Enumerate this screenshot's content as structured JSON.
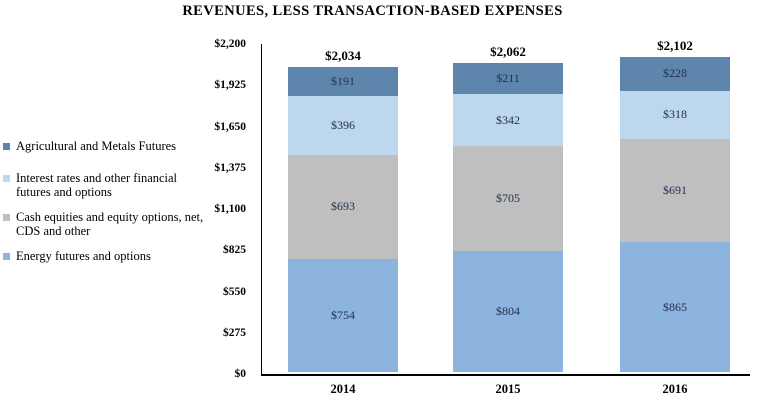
{
  "chart_data": {
    "type": "bar",
    "stacked": true,
    "title": "REVENUES, LESS TRANSACTION-BASED EXPENSES",
    "categories": [
      "2014",
      "2015",
      "2016"
    ],
    "series": [
      {
        "name": "Energy futures and options",
        "color": "#8db4de",
        "values": [
          754,
          804,
          865
        ]
      },
      {
        "name": "Cash equities and equity options, net, CDS and other",
        "color": "#bfbfbf",
        "values": [
          693,
          705,
          691
        ]
      },
      {
        "name": "Interest rates and other financial futures and options",
        "color": "#bdd7ee",
        "values": [
          396,
          342,
          318
        ]
      },
      {
        "name": "Agricultural and Metals Futures",
        "color": "#5e86ac",
        "values": [
          191,
          211,
          228
        ]
      }
    ],
    "totals": {
      "labels": [
        "$2,034",
        "$2,062",
        "$2,102"
      ],
      "values": [
        2034,
        2062,
        2102
      ]
    },
    "segment_labels": [
      [
        "$754",
        "$804",
        "$865"
      ],
      [
        "$693",
        "$705",
        "$691"
      ],
      [
        "$396",
        "$342",
        "$318"
      ],
      [
        "$191",
        "$211",
        "$228"
      ]
    ],
    "segment_label_color": "#22314f",
    "y_axis": {
      "max": 2200,
      "step": 275,
      "tick_values": [
        2200,
        1925,
        1650,
        1375,
        1100,
        825,
        550,
        275,
        0
      ],
      "tick_labels": [
        "$2,200",
        "$1,925",
        "$1,650",
        "$1,375",
        "$1,100",
        "$825",
        "$550",
        "$275",
        "$0"
      ]
    },
    "xlabel": "",
    "ylabel": "",
    "grid": false,
    "legend_position": "left"
  },
  "legend": {
    "items": [
      {
        "label": "Agricultural and Metals Futures",
        "color": "#5e86ac"
      },
      {
        "label": "Interest rates and other financial\nfutures and options",
        "color": "#bdd7ee"
      },
      {
        "label": "Cash equities and equity options, net,\nCDS and other",
        "color": "#bfbfbf"
      },
      {
        "label": "Energy futures and options",
        "color": "#8db4de"
      }
    ]
  }
}
